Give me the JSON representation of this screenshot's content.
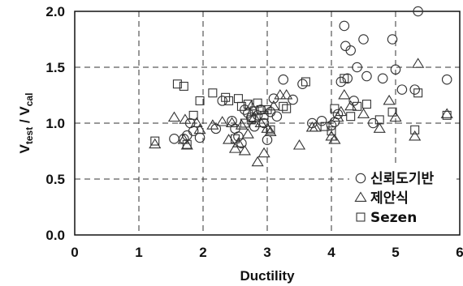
{
  "chart_data": {
    "type": "scatter",
    "xlabel": "Ductility",
    "ylabel": {
      "main1": "V",
      "sub1": "test",
      "mid": " / V",
      "sub2": "cal"
    },
    "xlim": [
      0,
      6
    ],
    "ylim": [
      0,
      2.0
    ],
    "xticks": [
      "0",
      "1",
      "2",
      "3",
      "4",
      "5",
      "6"
    ],
    "yticks": [
      "0.0",
      "0.5",
      "1.0",
      "1.5",
      "2.0"
    ],
    "grid": "dashed",
    "legend_position": "bottom-right",
    "series": [
      {
        "name": "신뢰도기반",
        "marker": "circle",
        "points": [
          [
            1.55,
            0.86
          ],
          [
            1.7,
            0.86
          ],
          [
            1.75,
            0.89
          ],
          [
            1.8,
            1.0
          ],
          [
            1.85,
            0.93
          ],
          [
            1.95,
            0.87
          ],
          [
            2.2,
            0.95
          ],
          [
            2.3,
            1.2
          ],
          [
            2.45,
            1.02
          ],
          [
            2.5,
            0.95
          ],
          [
            2.55,
            0.88
          ],
          [
            2.6,
            0.82
          ],
          [
            2.65,
            1.12
          ],
          [
            2.7,
            1.09
          ],
          [
            2.75,
            1.05
          ],
          [
            2.8,
            0.97
          ],
          [
            2.85,
            1.07
          ],
          [
            2.9,
            1.12
          ],
          [
            2.95,
            1.0
          ],
          [
            3.0,
            0.85
          ],
          [
            3.05,
            1.1
          ],
          [
            3.1,
            1.22
          ],
          [
            3.15,
            1.06
          ],
          [
            3.25,
            1.39
          ],
          [
            3.4,
            1.21
          ],
          [
            3.55,
            1.35
          ],
          [
            3.7,
            1.0
          ],
          [
            3.85,
            1.02
          ],
          [
            4.0,
            0.98
          ],
          [
            4.05,
            1.01
          ],
          [
            4.1,
            1.08
          ],
          [
            4.15,
            1.37
          ],
          [
            4.2,
            1.87
          ],
          [
            4.22,
            1.69
          ],
          [
            4.25,
            1.4
          ],
          [
            4.3,
            1.65
          ],
          [
            4.35,
            1.2
          ],
          [
            4.4,
            1.5
          ],
          [
            4.5,
            1.75
          ],
          [
            4.55,
            1.42
          ],
          [
            4.65,
            1.0
          ],
          [
            4.8,
            1.4
          ],
          [
            4.95,
            1.75
          ],
          [
            5.0,
            1.48
          ],
          [
            5.1,
            1.3
          ],
          [
            5.3,
            1.3
          ],
          [
            5.35,
            2.0
          ],
          [
            5.8,
            1.39
          ]
        ]
      },
      {
        "name": "제안식",
        "marker": "triangle",
        "points": [
          [
            1.25,
            0.81
          ],
          [
            1.55,
            1.05
          ],
          [
            1.7,
            0.85
          ],
          [
            1.72,
            1.03
          ],
          [
            1.75,
            0.8
          ],
          [
            1.9,
            1.0
          ],
          [
            1.95,
            0.94
          ],
          [
            2.15,
            0.98
          ],
          [
            2.3,
            1.01
          ],
          [
            2.4,
            0.85
          ],
          [
            2.45,
            1.0
          ],
          [
            2.5,
            0.77
          ],
          [
            2.55,
            0.82
          ],
          [
            2.6,
            0.98
          ],
          [
            2.65,
            0.75
          ],
          [
            2.7,
            0.9
          ],
          [
            2.75,
            1.15
          ],
          [
            2.8,
            1.05
          ],
          [
            2.85,
            0.65
          ],
          [
            2.9,
            1.0
          ],
          [
            2.95,
            0.73
          ],
          [
            3.0,
            0.95
          ],
          [
            3.05,
            0.92
          ],
          [
            3.1,
            1.15
          ],
          [
            3.2,
            1.25
          ],
          [
            3.3,
            1.25
          ],
          [
            3.5,
            0.8
          ],
          [
            3.7,
            0.96
          ],
          [
            3.75,
            0.96
          ],
          [
            4.0,
            0.88
          ],
          [
            4.05,
            0.85
          ],
          [
            4.1,
            1.05
          ],
          [
            4.15,
            1.1
          ],
          [
            4.2,
            1.25
          ],
          [
            4.3,
            1.15
          ],
          [
            4.5,
            1.08
          ],
          [
            4.75,
            0.95
          ],
          [
            4.9,
            1.2
          ],
          [
            5.0,
            1.05
          ],
          [
            5.3,
            0.88
          ],
          [
            5.35,
            1.53
          ],
          [
            5.8,
            1.08
          ]
        ]
      },
      {
        "name": "Sezen",
        "marker": "square",
        "points": [
          [
            1.25,
            0.84
          ],
          [
            1.6,
            1.35
          ],
          [
            1.7,
            1.33
          ],
          [
            1.75,
            0.81
          ],
          [
            1.85,
            1.07
          ],
          [
            1.95,
            1.2
          ],
          [
            2.15,
            1.27
          ],
          [
            2.35,
            1.23
          ],
          [
            2.4,
            1.2
          ],
          [
            2.5,
            0.86
          ],
          [
            2.55,
            1.22
          ],
          [
            2.6,
            1.15
          ],
          [
            2.65,
            1.0
          ],
          [
            2.7,
            1.17
          ],
          [
            2.75,
            1.03
          ],
          [
            2.8,
            1.11
          ],
          [
            2.85,
            1.18
          ],
          [
            2.9,
            1.12
          ],
          [
            2.95,
            1.07
          ],
          [
            3.0,
            1.12
          ],
          [
            3.05,
            0.94
          ],
          [
            3.25,
            1.15
          ],
          [
            3.3,
            1.13
          ],
          [
            3.6,
            1.37
          ],
          [
            3.9,
            0.97
          ],
          [
            4.0,
            0.93
          ],
          [
            4.05,
            1.13
          ],
          [
            4.2,
            1.4
          ],
          [
            4.3,
            1.06
          ],
          [
            4.4,
            1.15
          ],
          [
            4.55,
            1.17
          ],
          [
            4.75,
            1.03
          ],
          [
            4.95,
            1.1
          ],
          [
            5.3,
            0.94
          ],
          [
            5.35,
            1.27
          ],
          [
            5.8,
            1.07
          ]
        ]
      }
    ]
  }
}
